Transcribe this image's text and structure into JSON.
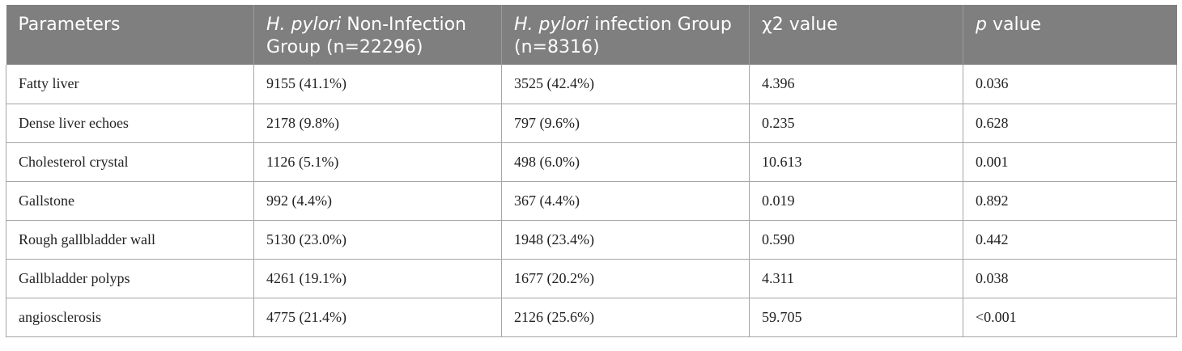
{
  "table": {
    "headers": [
      {
        "italic": "",
        "text": "Parameters"
      },
      {
        "italic": "H. pylori",
        "text": " Non-Infection Group (n=22296)"
      },
      {
        "italic": "H. pylori",
        "text": " infection Group (n=8316)"
      },
      {
        "italic": "",
        "text": "χ2 value"
      },
      {
        "italic": "p",
        "text": " value"
      }
    ],
    "rows": [
      [
        "Fatty liver",
        "9155 (41.1%)",
        "3525 (42.4%)",
        "4.396",
        "0.036"
      ],
      [
        "Dense liver echoes",
        "2178 (9.8%)",
        "797 (9.6%)",
        "0.235",
        "0.628"
      ],
      [
        "Cholesterol crystal",
        "1126 (5.1%)",
        "498 (6.0%)",
        "10.613",
        "0.001"
      ],
      [
        "Gallstone",
        "992 (4.4%)",
        "367 (4.4%)",
        "0.019",
        "0.892"
      ],
      [
        "Rough gallbladder wall",
        "5130 (23.0%)",
        "1948 (23.4%)",
        "0.590",
        "0.442"
      ],
      [
        "Gallbladder polyps",
        "4261 (19.1%)",
        "1677 (20.2%)",
        "4.311",
        "0.038"
      ],
      [
        "angiosclerosis",
        "4775 (21.4%)",
        "2126 (25.6%)",
        "59.705",
        "<0.001"
      ]
    ]
  },
  "colors": {
    "header_bg": "#7f7f7f",
    "header_text": "#ffffff",
    "grid": "#a6a6a6",
    "body_text": "#222222"
  }
}
